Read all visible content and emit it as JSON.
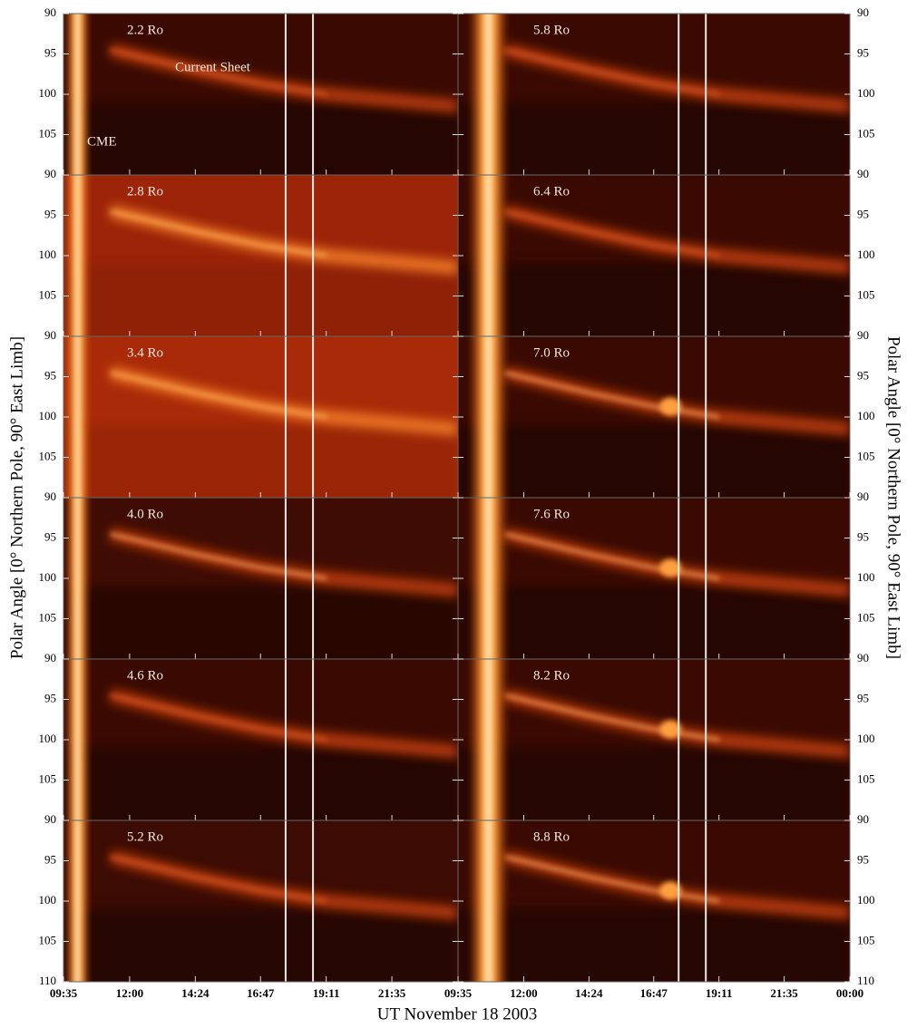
{
  "chart_data": {
    "type": "heatmap",
    "xlabel": "UT November 18 2003",
    "ylabel": "Polar Angle [0° Northern Pole, 90° East Limb]",
    "xlim": [
      9.583,
      24
    ],
    "xticks": [
      {
        "value": 9.583,
        "label": "09:35"
      },
      {
        "value": 12,
        "label": "12:00"
      },
      {
        "value": 14.4,
        "label": "14:24"
      },
      {
        "value": 16.783,
        "label": "16:47"
      },
      {
        "value": 19.183,
        "label": "19:11"
      },
      {
        "value": 21.583,
        "label": "21:35"
      },
      {
        "value": 24,
        "label": "00:00"
      }
    ],
    "ylim": [
      90,
      110
    ],
    "yticks": [
      90,
      95,
      100,
      105,
      110
    ],
    "vlines": [
      17.7,
      18.7
    ],
    "panels": [
      "2.2 Ro",
      "2.8 Ro",
      "3.4 Ro",
      "4.0 Ro",
      "4.6 Ro",
      "5.2 Ro",
      "5.8 Ro",
      "6.4 Ro",
      "7.0 Ro",
      "7.6 Ro",
      "8.2 Ro",
      "8.8 Ro"
    ],
    "annotations": [
      "Current Sheet",
      "CME"
    ]
  }
}
